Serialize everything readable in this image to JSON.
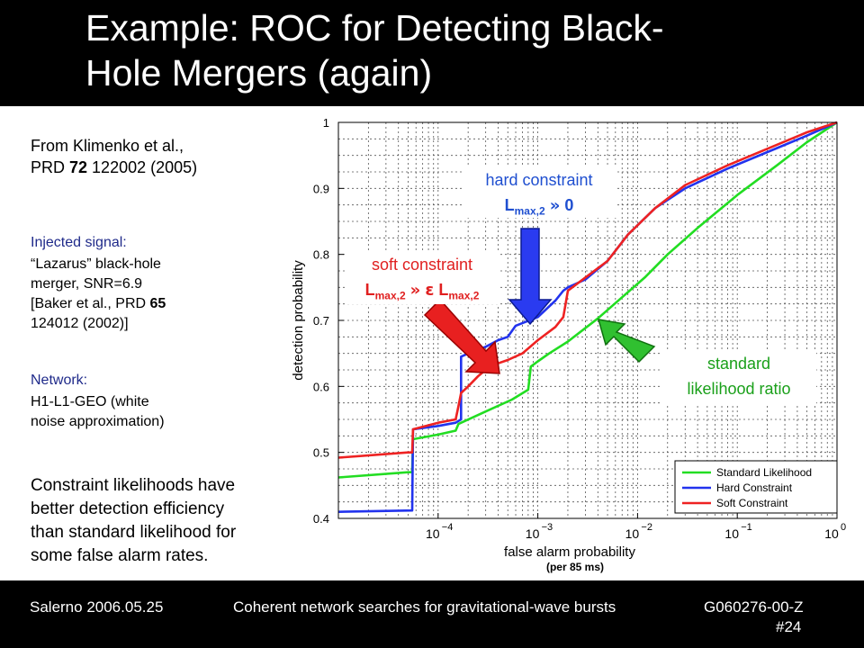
{
  "slide": {
    "title_line1": "Example: ROC for Detecting Black-",
    "title_line2": "Hole Mergers (again)"
  },
  "source": {
    "line1": "From Klimenko et al.,",
    "line2_prefix": "PRD ",
    "line2_volume": "72",
    "line2_suffix": " 122002 (2005)"
  },
  "signal": {
    "label": "Injected signal:",
    "line1": "“Lazarus” black-hole",
    "line2": "merger, SNR=6.9",
    "line3_prefix": "[Baker et al., PRD ",
    "line3_volume": "65",
    "line4": "124012 (2002)]"
  },
  "network": {
    "label": "Network:",
    "line1": "H1-L1-GEO (white",
    "line2": "noise approximation)"
  },
  "conclusion": {
    "line1": "Constraint likelihoods have",
    "line2": "better detection efficiency",
    "line3": "than standard likelihood for",
    "line4": "some false alarm rates."
  },
  "callouts": {
    "hard": {
      "line1": "hard constraint",
      "base": "L",
      "sub": "max,2",
      "rel": "»",
      "rhs": "0"
    },
    "soft": {
      "line1": "soft constraint",
      "base": "L",
      "sub": "max,2",
      "rel": "»",
      "eps": "ε",
      "base2": "L",
      "sub2": "max,2"
    },
    "standard": {
      "line1": "standard",
      "line2": "likelihood ratio"
    },
    "colors": {
      "hard_text": "#1f4fd0",
      "soft_text": "#e02020",
      "standard_text": "#1aa01a"
    }
  },
  "footer": {
    "left": "Salerno 2006.05.25",
    "center": "Coherent network searches for gravitational-wave bursts",
    "right": "G060276-00-Z",
    "page": "#24"
  },
  "chart_data": {
    "type": "line",
    "xlabel": "false alarm probability",
    "xlabel_note": "(per 85 ms)",
    "ylabel": "detection probability",
    "xscale": "log",
    "xlim": [
      1e-05,
      1
    ],
    "ylim": [
      0.4,
      1
    ],
    "grid": true,
    "legend_position": "bottom-right",
    "x_ticks": [
      {
        "value": 0.0001,
        "base": "10",
        "exp": "−4"
      },
      {
        "value": 0.001,
        "base": "10",
        "exp": "−3"
      },
      {
        "value": 0.01,
        "base": "10",
        "exp": "−2"
      },
      {
        "value": 0.1,
        "base": "10",
        "exp": "−1"
      },
      {
        "value": 1,
        "base": "10",
        "exp": "0"
      }
    ],
    "y_ticks": [
      "0.4",
      "0.5",
      "0.6",
      "0.7",
      "0.8",
      "0.9",
      "1"
    ],
    "series": [
      {
        "name": "Standard Likelihood",
        "color": "#22dd22",
        "points": [
          [
            1e-05,
            0.462
          ],
          [
            5e-05,
            0.47
          ],
          [
            5.5e-05,
            0.47
          ],
          [
            5.6e-05,
            0.52
          ],
          [
            0.0001,
            0.527
          ],
          [
            0.00015,
            0.533
          ],
          [
            0.00016,
            0.543
          ],
          [
            0.0003,
            0.562
          ],
          [
            0.00055,
            0.58
          ],
          [
            0.0008,
            0.595
          ],
          [
            0.00085,
            0.63
          ],
          [
            0.001,
            0.638
          ],
          [
            0.0013,
            0.65
          ],
          [
            0.002,
            0.668
          ],
          [
            0.004,
            0.703
          ],
          [
            0.007,
            0.735
          ],
          [
            0.012,
            0.766
          ],
          [
            0.02,
            0.8
          ],
          [
            0.04,
            0.84
          ],
          [
            0.1,
            0.89
          ],
          [
            0.25,
            0.935
          ],
          [
            0.5,
            0.97
          ],
          [
            1,
            1
          ]
        ]
      },
      {
        "name": "Hard Constraint",
        "color": "#2233ee",
        "points": [
          [
            1e-05,
            0.41
          ],
          [
            5.5e-05,
            0.412
          ],
          [
            5.6e-05,
            0.535
          ],
          [
            0.0001,
            0.54
          ],
          [
            0.00015,
            0.545
          ],
          [
            0.00017,
            0.55
          ],
          [
            0.00017,
            0.645
          ],
          [
            0.0002,
            0.65
          ],
          [
            0.0003,
            0.66
          ],
          [
            0.0004,
            0.67
          ],
          [
            0.0005,
            0.675
          ],
          [
            0.0006,
            0.692
          ],
          [
            0.001,
            0.705
          ],
          [
            0.0015,
            0.73
          ],
          [
            0.0018,
            0.745
          ],
          [
            0.002,
            0.75
          ],
          [
            0.003,
            0.762
          ],
          [
            0.005,
            0.79
          ],
          [
            0.008,
            0.83
          ],
          [
            0.015,
            0.87
          ],
          [
            0.03,
            0.9
          ],
          [
            0.08,
            0.93
          ],
          [
            0.2,
            0.955
          ],
          [
            0.5,
            0.98
          ],
          [
            1,
            1
          ]
        ]
      },
      {
        "name": "Soft Constraint",
        "color": "#ee2222",
        "points": [
          [
            1e-05,
            0.492
          ],
          [
            5e-05,
            0.5
          ],
          [
            5.5e-05,
            0.5
          ],
          [
            5.6e-05,
            0.535
          ],
          [
            0.0001,
            0.545
          ],
          [
            0.00015,
            0.55
          ],
          [
            0.00016,
            0.57
          ],
          [
            0.00017,
            0.59
          ],
          [
            0.0002,
            0.6
          ],
          [
            0.00025,
            0.615
          ],
          [
            0.0003,
            0.625
          ],
          [
            0.0004,
            0.635
          ],
          [
            0.0005,
            0.64
          ],
          [
            0.0007,
            0.65
          ],
          [
            0.001,
            0.67
          ],
          [
            0.0015,
            0.69
          ],
          [
            0.0018,
            0.705
          ],
          [
            0.002,
            0.745
          ],
          [
            0.003,
            0.765
          ],
          [
            0.005,
            0.79
          ],
          [
            0.008,
            0.83
          ],
          [
            0.015,
            0.87
          ],
          [
            0.03,
            0.905
          ],
          [
            0.08,
            0.935
          ],
          [
            0.2,
            0.96
          ],
          [
            0.5,
            0.985
          ],
          [
            1,
            1
          ]
        ]
      }
    ]
  }
}
